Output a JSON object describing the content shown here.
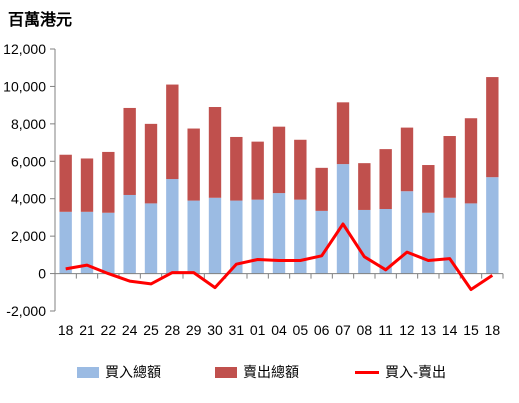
{
  "unit_label": "百萬港元",
  "legend": {
    "buy": "買入總額",
    "sell": "賣出總額",
    "net": "買入-賣出"
  },
  "colors": {
    "buy": "#9BBBE3",
    "sell": "#C0504D",
    "net": "#FF0000"
  },
  "chart_data": {
    "type": "bar",
    "stacked": true,
    "categories": [
      "18",
      "21",
      "22",
      "24",
      "25",
      "28",
      "29",
      "30",
      "31",
      "01",
      "04",
      "05",
      "06",
      "07",
      "08",
      "11",
      "12",
      "13",
      "14",
      "15",
      "18"
    ],
    "series": [
      {
        "name": "買入總額",
        "type": "bar",
        "values": [
          3300,
          3300,
          3250,
          4200,
          3750,
          5050,
          3900,
          4050,
          3900,
          3950,
          4300,
          3950,
          3350,
          5850,
          3400,
          3450,
          4400,
          3250,
          4050,
          3750,
          5150
        ]
      },
      {
        "name": "賣出總額",
        "type": "bar",
        "values": [
          3050,
          2850,
          3250,
          4650,
          4250,
          5050,
          3850,
          4850,
          3400,
          3100,
          3550,
          3200,
          2300,
          3300,
          2500,
          3200,
          3400,
          2550,
          3300,
          4550,
          5350
        ]
      },
      {
        "name": "買入-賣出",
        "type": "line",
        "values": [
          250,
          450,
          0,
          -400,
          -550,
          50,
          50,
          -750,
          500,
          750,
          700,
          700,
          950,
          2650,
          900,
          200,
          1150,
          700,
          800,
          -850,
          -100
        ]
      }
    ],
    "ylim": [
      -2000,
      12000
    ],
    "yticks": [
      -2000,
      0,
      2000,
      4000,
      6000,
      8000,
      10000,
      12000
    ],
    "ytick_labels": [
      "-2,000",
      "0",
      "2,000",
      "4,000",
      "6,000",
      "8,000",
      "10,000",
      "12,000"
    ],
    "grid": false,
    "legend_position": "bottom"
  }
}
